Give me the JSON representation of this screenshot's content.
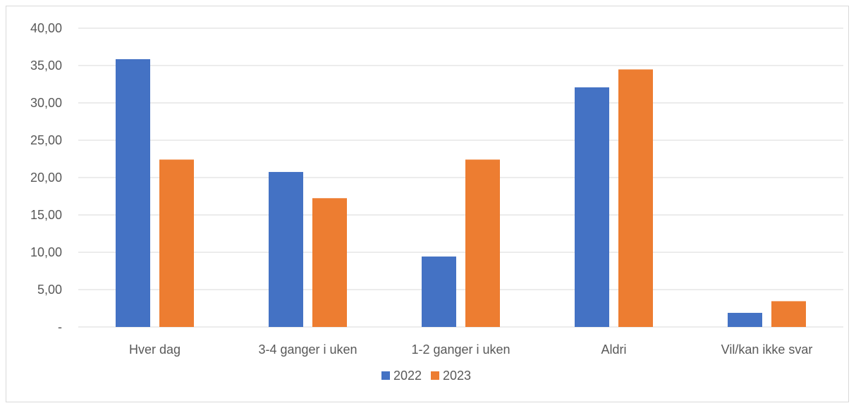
{
  "chart_data": {
    "type": "bar",
    "title": "",
    "xlabel": "",
    "ylabel": "",
    "categories": [
      "Hver dag",
      "3-4 ganger i uken",
      "1-2 ganger i uken",
      "Aldri",
      "Vil/kan ikke svar"
    ],
    "series": [
      {
        "name": "2022",
        "color": "#4472c4",
        "values": [
          35.85,
          20.75,
          9.43,
          32.08,
          1.89
        ]
      },
      {
        "name": "2023",
        "color": "#ed7d31",
        "values": [
          22.41,
          17.24,
          22.41,
          34.48,
          3.45
        ]
      }
    ],
    "ylim": [
      0,
      40
    ],
    "yticks": [
      0,
      5,
      10,
      15,
      20,
      25,
      30,
      35,
      40
    ],
    "ytick_labels": [
      "-",
      "5,00",
      "10,00",
      "15,00",
      "20,00",
      "25,00",
      "30,00",
      "35,00",
      "40,00"
    ],
    "grid": true,
    "legend_position": "bottom"
  }
}
